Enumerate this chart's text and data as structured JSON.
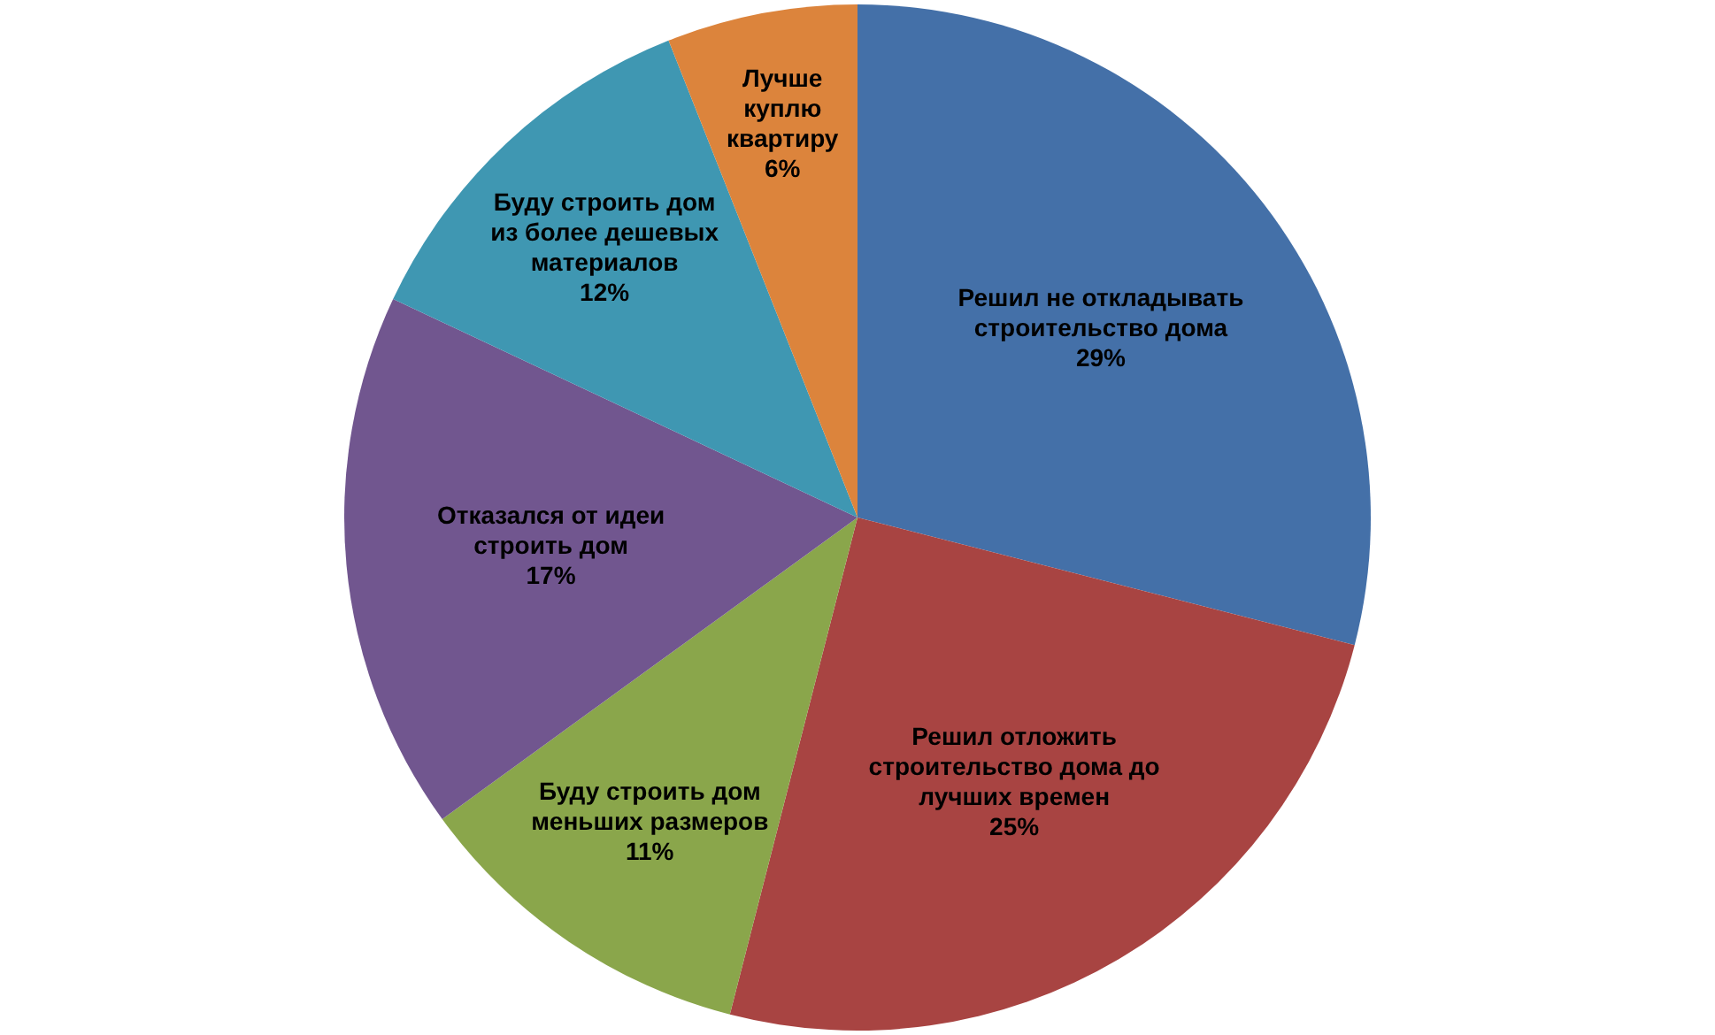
{
  "chart_data": {
    "type": "pie",
    "categories": [
      "Решил не откладывать строительство дома",
      "Решил отложить строительство дома до лучших времен",
      "Буду строить дом меньших размеров",
      "Отказался от идеи строить дом",
      "Буду строить дом из более дешевых материалов",
      "Лучше куплю квартиру"
    ],
    "values": [
      29,
      25,
      11,
      17,
      12,
      6
    ],
    "value_labels": [
      "29%",
      "25%",
      "11%",
      "17%",
      "12%",
      "6%"
    ],
    "colors": [
      "#4470a8",
      "#a84442",
      "#8aa64b",
      "#71568f",
      "#3f97b2",
      "#dc843c"
    ]
  }
}
